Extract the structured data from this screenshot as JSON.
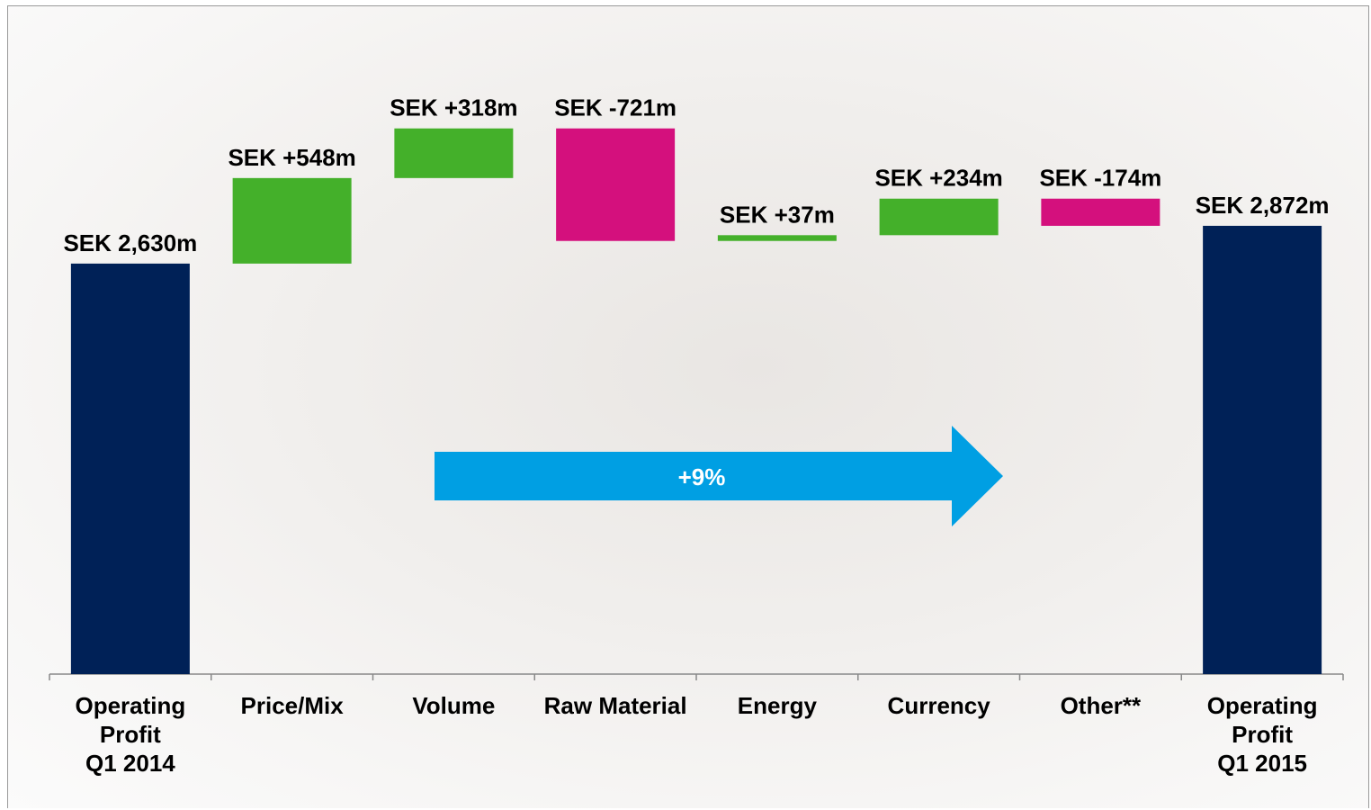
{
  "chart_data": {
    "type": "waterfall",
    "categories": [
      "Operating\nProfit\nQ1 2014",
      "Price/Mix",
      "Volume",
      "Raw Material",
      "Energy",
      "Currency",
      "Other**",
      "Operating\nProfit\nQ1 2015"
    ],
    "values": [
      2630,
      548,
      318,
      -721,
      37,
      234,
      -174,
      2872
    ],
    "value_labels": [
      "SEK 2,630m",
      "SEK +548m",
      "SEK +318m",
      "SEK -721m",
      "SEK +37m",
      "SEK +234m",
      "SEK -174m",
      "SEK 2,872m"
    ],
    "colors": {
      "total": "#002157",
      "increase": "#44b02a",
      "decrease": "#d4107d"
    },
    "ylim": [
      0,
      3500
    ],
    "annotation": {
      "text": "+9%",
      "color": "#009fe3"
    }
  }
}
